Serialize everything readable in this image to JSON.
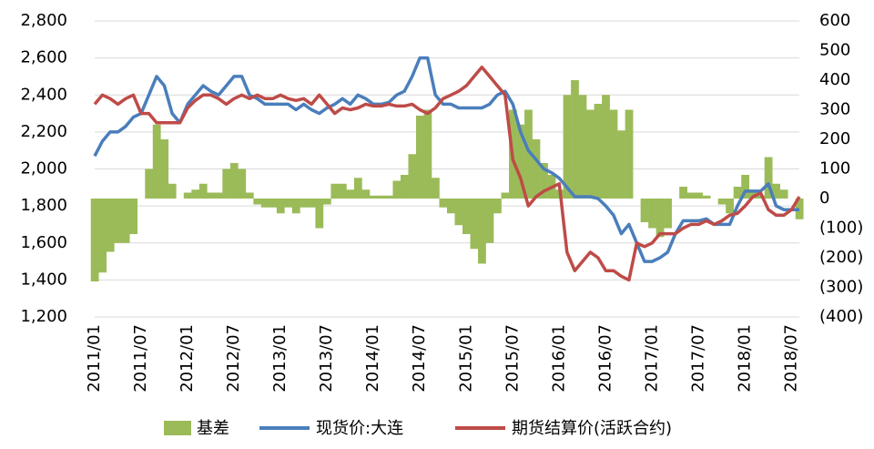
{
  "chart_data": {
    "type": "line",
    "x": [
      "2011/01",
      "2011/02",
      "2011/03",
      "2011/04",
      "2011/05",
      "2011/06",
      "2011/07",
      "2011/08",
      "2011/09",
      "2011/10",
      "2011/11",
      "2011/12",
      "2012/01",
      "2012/02",
      "2012/03",
      "2012/04",
      "2012/05",
      "2012/06",
      "2012/07",
      "2012/08",
      "2012/09",
      "2012/10",
      "2012/11",
      "2012/12",
      "2013/01",
      "2013/02",
      "2013/03",
      "2013/04",
      "2013/05",
      "2013/06",
      "2013/07",
      "2013/08",
      "2013/09",
      "2013/10",
      "2013/11",
      "2013/12",
      "2014/01",
      "2014/02",
      "2014/03",
      "2014/04",
      "2014/05",
      "2014/06",
      "2014/07",
      "2014/08",
      "2014/09",
      "2014/10",
      "2014/11",
      "2014/12",
      "2015/01",
      "2015/02",
      "2015/03",
      "2015/04",
      "2015/05",
      "2015/06",
      "2015/07",
      "2015/08",
      "2015/09",
      "2015/10",
      "2015/11",
      "2015/12",
      "2016/01",
      "2016/02",
      "2016/03",
      "2016/04",
      "2016/05",
      "2016/06",
      "2016/07",
      "2016/08",
      "2016/09",
      "2016/10",
      "2016/11",
      "2016/12",
      "2017/01",
      "2017/02",
      "2017/03",
      "2017/04",
      "2017/05",
      "2017/06",
      "2017/07",
      "2017/08",
      "2017/09",
      "2017/10",
      "2017/11",
      "2017/12",
      "2018/01",
      "2018/02",
      "2018/03",
      "2018/04",
      "2018/05",
      "2018/06",
      "2018/07",
      "2018/08"
    ],
    "xlim": [
      "2011/01",
      "2018/08"
    ],
    "xticks": [
      "2011/01",
      "2011/07",
      "2012/01",
      "2012/07",
      "2013/01",
      "2013/07",
      "2014/01",
      "2014/07",
      "2015/01",
      "2015/07",
      "2016/01",
      "2016/07",
      "2017/01",
      "2017/07",
      "2018/01",
      "2018/07"
    ],
    "series": [
      {
        "name": "基差",
        "type": "bar",
        "axis": "y2",
        "color": "#9bbb59",
        "values": [
          -280,
          -250,
          -180,
          -150,
          -150,
          -120,
          0,
          100,
          250,
          200,
          50,
          0,
          20,
          30,
          50,
          20,
          20,
          100,
          120,
          100,
          20,
          -20,
          -30,
          -30,
          -50,
          -30,
          -50,
          -30,
          -30,
          -100,
          -20,
          50,
          50,
          30,
          70,
          30,
          10,
          10,
          10,
          60,
          80,
          150,
          280,
          300,
          70,
          -30,
          -50,
          -90,
          -120,
          -170,
          -220,
          -150,
          -50,
          20,
          300,
          250,
          300,
          200,
          120,
          80,
          30,
          350,
          400,
          350,
          300,
          320,
          350,
          300,
          230,
          300,
          0,
          -80,
          -100,
          -130,
          -100,
          0,
          40,
          20,
          20,
          10,
          0,
          -20,
          -50,
          40,
          80,
          30,
          10,
          140,
          50,
          30,
          0,
          -70
        ]
      },
      {
        "name": "现货价:大连",
        "color": "#4a7ebb",
        "values": [
          2070,
          2150,
          2200,
          2200,
          2230,
          2280,
          2300,
          2400,
          2500,
          2450,
          2300,
          2250,
          2350,
          2400,
          2450,
          2420,
          2400,
          2450,
          2500,
          2500,
          2400,
          2380,
          2350,
          2350,
          2350,
          2350,
          2320,
          2350,
          2320,
          2300,
          2330,
          2350,
          2380,
          2350,
          2400,
          2380,
          2350,
          2350,
          2360,
          2400,
          2420,
          2500,
          2600,
          2600,
          2400,
          2350,
          2350,
          2330,
          2330,
          2330,
          2330,
          2350,
          2400,
          2420,
          2350,
          2200,
          2100,
          2050,
          2000,
          1980,
          1950,
          1900,
          1850,
          1850,
          1850,
          1840,
          1800,
          1750,
          1650,
          1700,
          1600,
          1500,
          1500,
          1520,
          1550,
          1650,
          1720,
          1720,
          1720,
          1730,
          1700,
          1700,
          1700,
          1800,
          1880,
          1880,
          1880,
          1920,
          1800,
          1780,
          1780,
          1780
        ]
      },
      {
        "name": "期货结算价(活跃合约)",
        "color": "#be4b48",
        "values": [
          2350,
          2400,
          2380,
          2350,
          2380,
          2400,
          2300,
          2300,
          2250,
          2250,
          2250,
          2250,
          2330,
          2370,
          2400,
          2400,
          2380,
          2350,
          2380,
          2400,
          2380,
          2400,
          2380,
          2380,
          2400,
          2380,
          2370,
          2380,
          2350,
          2400,
          2350,
          2300,
          2330,
          2320,
          2330,
          2350,
          2340,
          2340,
          2350,
          2340,
          2340,
          2350,
          2320,
          2300,
          2330,
          2380,
          2400,
          2420,
          2450,
          2500,
          2550,
          2500,
          2450,
          2400,
          2050,
          1950,
          1800,
          1850,
          1880,
          1900,
          1920,
          1550,
          1450,
          1500,
          1550,
          1520,
          1450,
          1450,
          1420,
          1400,
          1600,
          1580,
          1600,
          1650,
          1650,
          1650,
          1680,
          1700,
          1700,
          1720,
          1700,
          1720,
          1750,
          1760,
          1800,
          1850,
          1870,
          1780,
          1750,
          1750,
          1780,
          1850
        ]
      }
    ],
    "ylim": [
      1200,
      2800
    ],
    "yticks": [
      {
        "value": 1200,
        "label": "1,200"
      },
      {
        "value": 1400,
        "label": "1,400"
      },
      {
        "value": 1600,
        "label": "1,600"
      },
      {
        "value": 1800,
        "label": "1,800"
      },
      {
        "value": 2000,
        "label": "2,000"
      },
      {
        "value": 2200,
        "label": "2,200"
      },
      {
        "value": 2400,
        "label": "2,400"
      },
      {
        "value": 2600,
        "label": "2,600"
      },
      {
        "value": 2800,
        "label": "2,800"
      }
    ],
    "y2lim": [
      -400,
      600
    ],
    "y2ticks": [
      {
        "value": -400,
        "label": "(400)"
      },
      {
        "value": -300,
        "label": "(300)"
      },
      {
        "value": -200,
        "label": "(200)"
      },
      {
        "value": -100,
        "label": "(100)"
      },
      0,
      100,
      200,
      300,
      400,
      500,
      600
    ],
    "grid": true,
    "legend": "bottom"
  }
}
